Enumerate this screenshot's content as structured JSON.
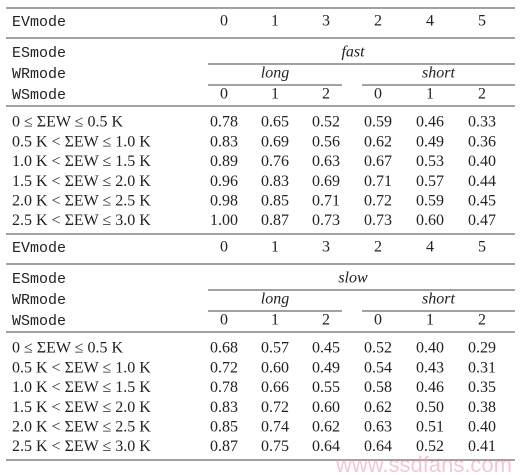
{
  "tables": [
    {
      "evmode_label": "EVmode",
      "evmode": [
        "0",
        "1",
        "3",
        "2",
        "4",
        "5"
      ],
      "esmode_label": "ESmode",
      "esmode": "fast",
      "wrmode_label": "WRmode",
      "wrmode": [
        "long",
        "short"
      ],
      "wsmode_label": "WSmode",
      "wsmode": [
        "0",
        "1",
        "2",
        "0",
        "1",
        "2"
      ],
      "rows": [
        {
          "label": "0 ≤ ΣEW ≤ 0.5 K",
          "values": [
            "0.78",
            "0.65",
            "0.52",
            "0.59",
            "0.46",
            "0.33"
          ]
        },
        {
          "label": "0.5 K < ΣEW ≤ 1.0 K",
          "values": [
            "0.83",
            "0.69",
            "0.56",
            "0.62",
            "0.49",
            "0.36"
          ]
        },
        {
          "label": "1.0 K < ΣEW ≤ 1.5 K",
          "values": [
            "0.89",
            "0.76",
            "0.63",
            "0.67",
            "0.53",
            "0.40"
          ]
        },
        {
          "label": "1.5 K < ΣEW ≤ 2.0 K",
          "values": [
            "0.96",
            "0.83",
            "0.69",
            "0.71",
            "0.57",
            "0.44"
          ]
        },
        {
          "label": "2.0 K < ΣEW ≤ 2.5 K",
          "values": [
            "0.98",
            "0.85",
            "0.71",
            "0.72",
            "0.59",
            "0.45"
          ]
        },
        {
          "label": "2.5 K < ΣEW ≤ 3.0 K",
          "values": [
            "1.00",
            "0.87",
            "0.73",
            "0.73",
            "0.60",
            "0.47"
          ]
        }
      ]
    },
    {
      "evmode_label": "EVmode",
      "evmode": [
        "0",
        "1",
        "3",
        "2",
        "4",
        "5"
      ],
      "esmode_label": "ESmode",
      "esmode": "slow",
      "wrmode_label": "WRmode",
      "wrmode": [
        "long",
        "short"
      ],
      "wsmode_label": "WSmode",
      "wsmode": [
        "0",
        "1",
        "2",
        "0",
        "1",
        "2"
      ],
      "rows": [
        {
          "label": "0 ≤ ΣEW ≤ 0.5 K",
          "values": [
            "0.68",
            "0.57",
            "0.45",
            "0.52",
            "0.40",
            "0.29"
          ]
        },
        {
          "label": "0.5 K < ΣEW ≤ 1.0 K",
          "values": [
            "0.72",
            "0.60",
            "0.49",
            "0.54",
            "0.43",
            "0.31"
          ]
        },
        {
          "label": "1.0 K < ΣEW ≤ 1.5 K",
          "values": [
            "0.78",
            "0.66",
            "0.55",
            "0.58",
            "0.46",
            "0.35"
          ]
        },
        {
          "label": "1.5 K < ΣEW ≤ 2.0 K",
          "values": [
            "0.83",
            "0.72",
            "0.60",
            "0.62",
            "0.50",
            "0.38"
          ]
        },
        {
          "label": "2.0 K < ΣEW ≤ 2.5 K",
          "values": [
            "0.85",
            "0.74",
            "0.62",
            "0.63",
            "0.51",
            "0.40"
          ]
        },
        {
          "label": "2.5 K < ΣEW ≤ 3.0 K",
          "values": [
            "0.87",
            "0.75",
            "0.64",
            "0.64",
            "0.52",
            "0.41"
          ]
        }
      ]
    }
  ],
  "watermark": "www.ssdfans.com"
}
